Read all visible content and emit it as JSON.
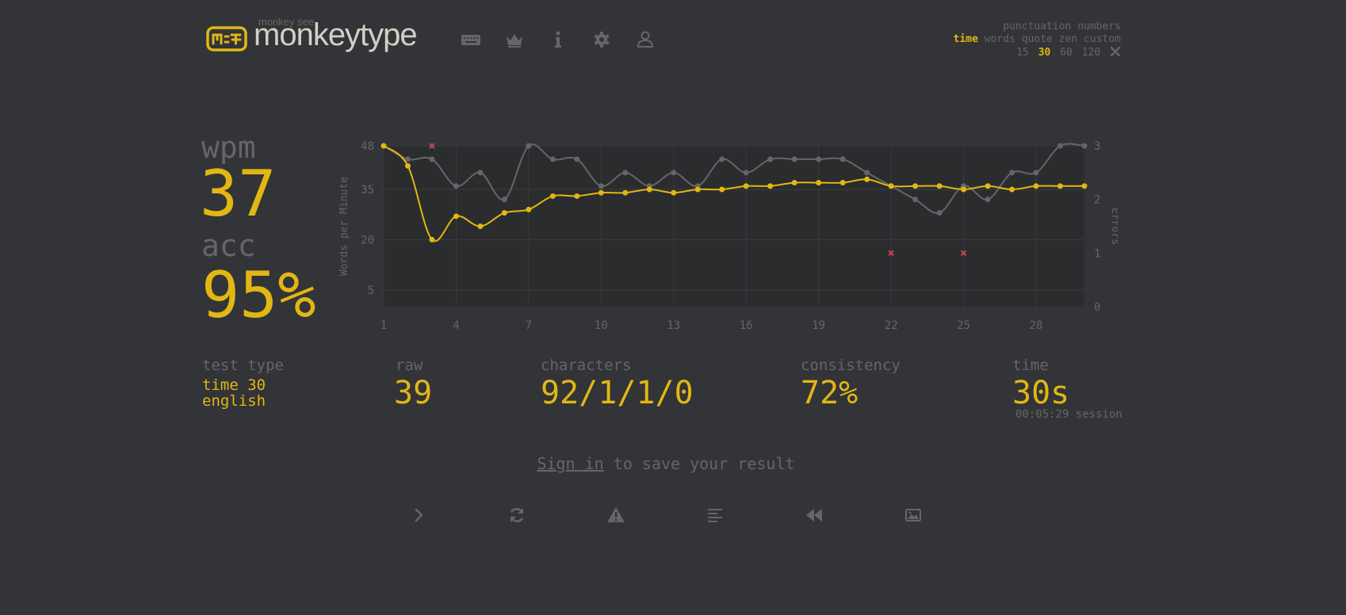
{
  "header": {
    "logo_sub": "monkey see",
    "logo_text": "monkeytype",
    "nav": [
      "keyboard-icon",
      "crown-icon",
      "info-icon",
      "gear-icon",
      "user-icon"
    ]
  },
  "config": {
    "row1": [
      "punctuation",
      "numbers"
    ],
    "modes": [
      "time",
      "words",
      "quote",
      "zen",
      "custom"
    ],
    "active_mode": "time",
    "durations": [
      "15",
      "30",
      "60",
      "120"
    ],
    "active_duration": "30",
    "custom_icon": "tools-icon"
  },
  "result": {
    "wpm_label": "wpm",
    "wpm": "37",
    "acc_label": "acc",
    "acc": "95%",
    "test_type_label": "test type",
    "test_type_line1": "time 30",
    "test_type_line2": "english",
    "raw_label": "raw",
    "raw": "39",
    "characters_label": "characters",
    "characters": "92/1/1/0",
    "consistency_label": "consistency",
    "consistency": "72%",
    "time_label": "time",
    "time": "30s",
    "session": "00:05:29 session"
  },
  "signin": {
    "link": "Sign in",
    "rest": " to save your result"
  },
  "bottom_buttons": [
    "next-test-icon",
    "restart-icon",
    "warning-icon",
    "words-history-icon",
    "replay-icon",
    "screenshot-icon"
  ],
  "colors": {
    "bg": "#323437",
    "main": "#e2b714",
    "sub": "#646669",
    "text": "#d1d0c5",
    "error": "#ca4754",
    "raw": "#646669"
  },
  "chart_data": {
    "type": "line",
    "ylabel": "Words per Minute",
    "y2label": "Errors",
    "ylim": [
      0,
      48
    ],
    "y_ticks": [
      5,
      20,
      35,
      48
    ],
    "y2lim": [
      0,
      3
    ],
    "y2_ticks": [
      0,
      1,
      2,
      3
    ],
    "xlim": [
      1,
      30
    ],
    "x_ticks": [
      1,
      4,
      7,
      10,
      13,
      16,
      19,
      22,
      25,
      28
    ],
    "grid": true,
    "series": [
      {
        "values_for": "wpm",
        "x": [
          1,
          2,
          3,
          4,
          5,
          6,
          7,
          8,
          9,
          10,
          11,
          12,
          13,
          14,
          15,
          16,
          17,
          18,
          19,
          20,
          21,
          22,
          23,
          24,
          25,
          26,
          27,
          28,
          29,
          30
        ],
        "values": [
          48,
          42,
          20,
          27,
          24,
          28,
          29,
          33,
          33,
          34,
          34,
          35,
          34,
          35,
          35,
          36,
          36,
          37,
          37,
          37,
          38,
          36,
          36,
          36,
          35,
          36,
          35,
          36,
          36,
          36
        ]
      },
      {
        "values_for": "raw",
        "x": [
          1,
          2,
          3,
          4,
          5,
          6,
          7,
          8,
          9,
          10,
          11,
          12,
          13,
          14,
          15,
          16,
          17,
          18,
          19,
          20,
          21,
          22,
          23,
          24,
          25,
          26,
          27,
          28,
          29,
          30
        ],
        "values": [
          48,
          44,
          44,
          36,
          40,
          32,
          48,
          44,
          44,
          36,
          40,
          36,
          40,
          36,
          44,
          40,
          44,
          44,
          44,
          44,
          40,
          36,
          32,
          28,
          36,
          32,
          40,
          40,
          48,
          48
        ]
      },
      {
        "values_for": "errors",
        "x": [
          3,
          22,
          25
        ],
        "values": [
          3,
          1,
          1
        ]
      }
    ]
  }
}
